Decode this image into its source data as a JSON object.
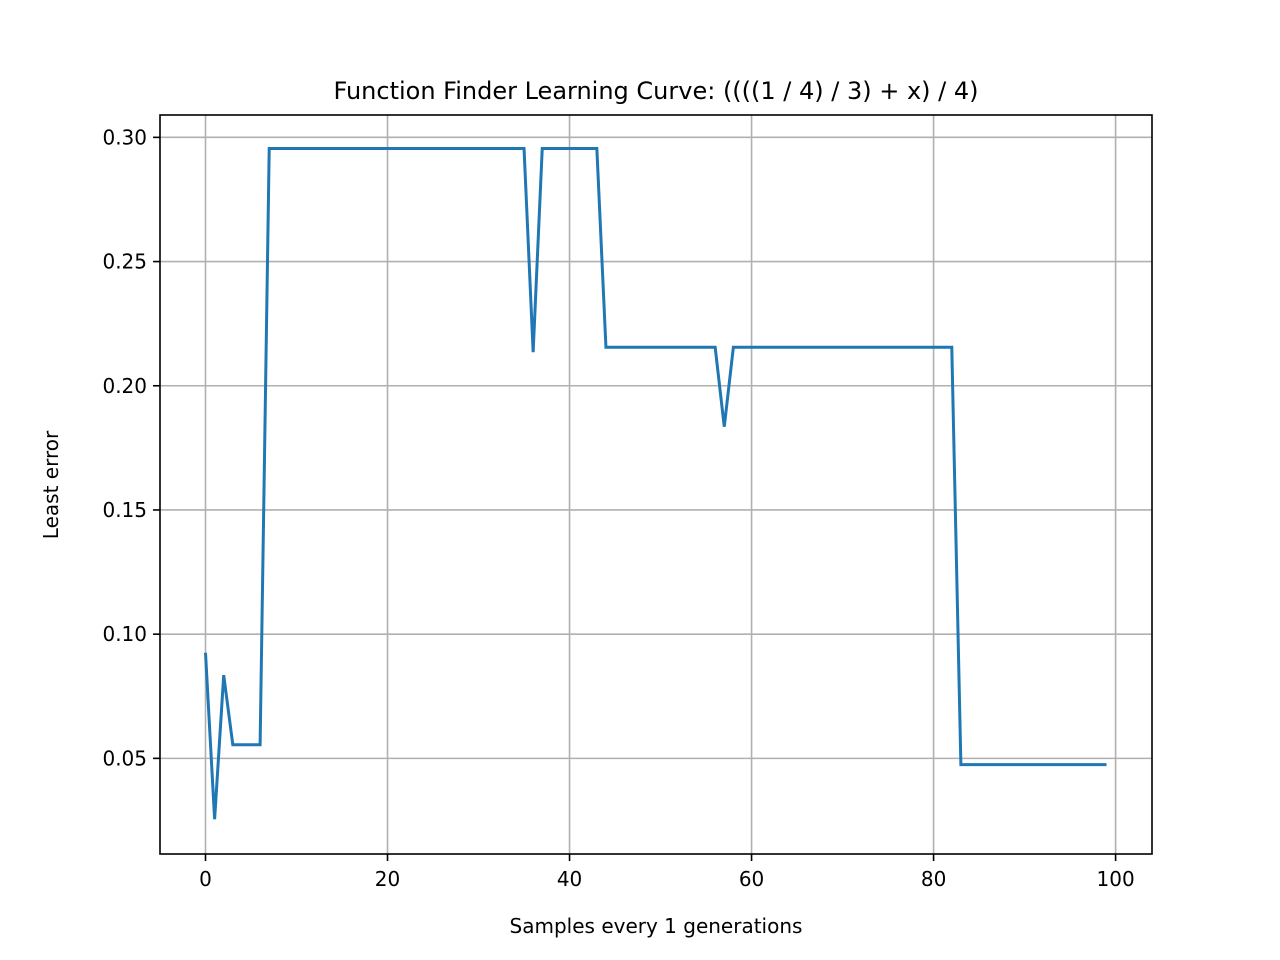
{
  "chart_data": {
    "type": "line",
    "title": "Function Finder Learning Curve: ((((1 / 4) / 3) + x) / 4)",
    "xlabel": "Samples every 1 generations",
    "ylabel": "Least error",
    "xlim": [
      -5,
      104
    ],
    "ylim": [
      0.0115,
      0.309
    ],
    "xticks": [
      0,
      20,
      40,
      60,
      80,
      100
    ],
    "yticks": [
      0.05,
      0.1,
      0.15,
      0.2,
      0.25,
      0.3
    ],
    "ytick_labels": [
      "0.05",
      "0.10",
      "0.15",
      "0.20",
      "0.25",
      "0.30"
    ],
    "grid": true,
    "series": [
      {
        "color": "#1f77b4",
        "x": [
          0,
          1,
          2,
          3,
          6,
          7,
          35,
          36,
          37,
          43,
          44,
          56,
          57,
          58,
          82,
          83,
          99
        ],
        "y": [
          0.0925,
          0.0255,
          0.0835,
          0.0555,
          0.0555,
          0.2955,
          0.2955,
          0.2135,
          0.2955,
          0.2955,
          0.2155,
          0.2155,
          0.1835,
          0.2155,
          0.2155,
          0.0475,
          0.0475
        ]
      }
    ]
  }
}
